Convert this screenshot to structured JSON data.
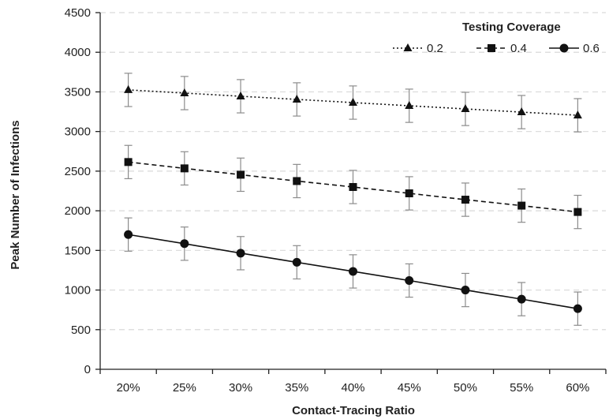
{
  "chart_data": {
    "type": "line",
    "title": "",
    "xlabel": "Contact-Tracing Ratio",
    "ylabel": "Peak Number of Infections",
    "categories": [
      "20%",
      "25%",
      "30%",
      "35%",
      "40%",
      "45%",
      "50%",
      "55%",
      "60%"
    ],
    "ylim": [
      0,
      4500
    ],
    "yticks": [
      0,
      500,
      1000,
      1500,
      2000,
      2500,
      3000,
      3500,
      4000,
      4500
    ],
    "grid": "horizontal-dashed",
    "legend": {
      "title": "Testing Coverage",
      "placement": "top-right"
    },
    "error_bar": 210,
    "series": [
      {
        "name": "0.2",
        "marker": "triangle",
        "line_style": "dotted",
        "values": [
          3525,
          3485,
          3445,
          3405,
          3365,
          3325,
          3285,
          3245,
          3205
        ]
      },
      {
        "name": "0.4",
        "marker": "square",
        "line_style": "dashed",
        "values": [
          2615,
          2535,
          2455,
          2375,
          2300,
          2220,
          2140,
          2065,
          1985
        ]
      },
      {
        "name": "0.6",
        "marker": "circle",
        "line_style": "solid",
        "values": [
          1700,
          1585,
          1465,
          1350,
          1235,
          1120,
          1000,
          885,
          765
        ]
      }
    ],
    "colors": {
      "line": "#111111",
      "errorbar": "#8c8c8c",
      "grid": "#d9d9d9",
      "axis": "#222222"
    }
  }
}
